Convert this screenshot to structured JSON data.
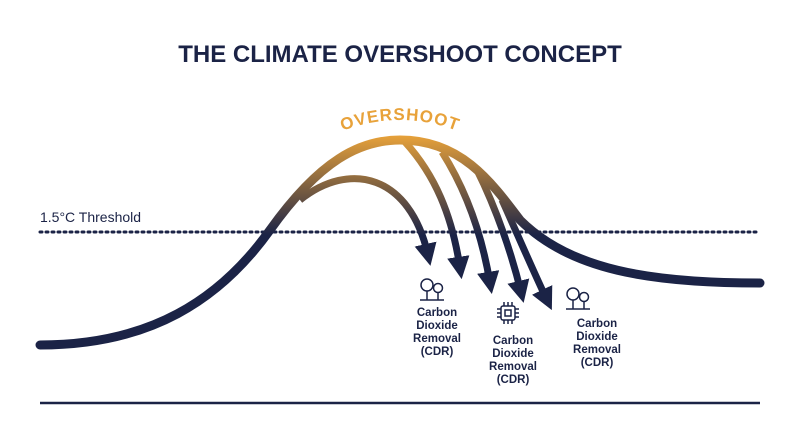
{
  "title": "THE CLIMATE OVERSHOOT CONCEPT",
  "threshold_label": "1.5°C Threshold",
  "overshoot_label": "OVERSHOOT",
  "cdr_labels": [
    [
      "Carbon",
      "Dioxide",
      "Removal",
      "(CDR)"
    ],
    [
      "Carbon",
      "Dioxide",
      "Removal",
      "(CDR)"
    ],
    [
      "Carbon",
      "Dioxide",
      "Removal",
      "(CDR)"
    ]
  ]
}
